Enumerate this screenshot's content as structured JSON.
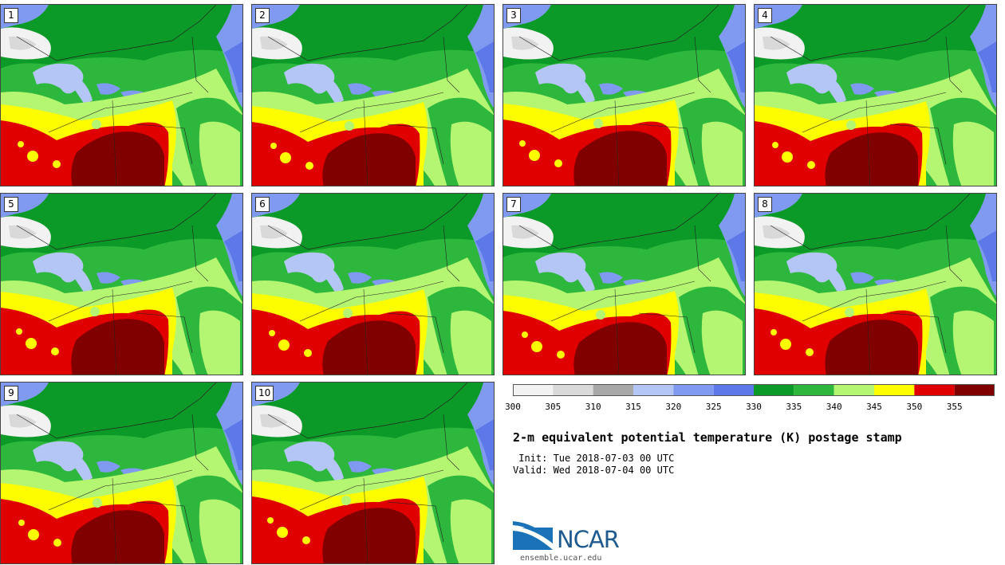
{
  "members": [
    {
      "label": "1"
    },
    {
      "label": "2"
    },
    {
      "label": "3"
    },
    {
      "label": "4"
    },
    {
      "label": "5"
    },
    {
      "label": "6"
    },
    {
      "label": "7"
    },
    {
      "label": "8"
    },
    {
      "label": "9"
    },
    {
      "label": "10"
    }
  ],
  "colorbar": {
    "ticks": [
      "300",
      "305",
      "310",
      "315",
      "320",
      "325",
      "330",
      "335",
      "340",
      "345",
      "350",
      "355"
    ],
    "colors": [
      "#f2f2f2",
      "#d9d9d9",
      "#a8a8a8",
      "#b4c6f5",
      "#7f9af0",
      "#5d78e8",
      "#0b9a27",
      "#2db83d",
      "#b4f571",
      "#fdfd00",
      "#e00000",
      "#800000"
    ]
  },
  "title": "2-m equivalent potential temperature (K) postage stamp",
  "init_line": " Init: Tue 2018-07-03 00 UTC",
  "valid_line": "Valid: Wed 2018-07-04 00 UTC",
  "logo": {
    "name": "NCAR",
    "url": "ensemble.ucar.edu"
  }
}
